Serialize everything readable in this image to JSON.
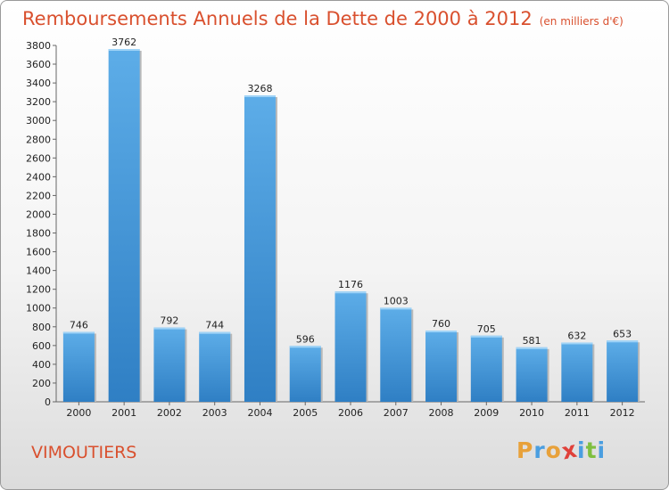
{
  "header": {
    "title": "Remboursements Annuels de la Dette de 2000 à 2012",
    "subtitle": "(en milliers d'€)"
  },
  "footer": {
    "city": "VIMOUTIERS",
    "logo_text": "Proxiti"
  },
  "colors": {
    "bar_light": "#5dade8",
    "bar_dark": "#2f7fc4",
    "title": "#d9502e",
    "logo": [
      "#e8a13a",
      "#4a9ee0",
      "#e8a13a",
      "#e0413a",
      "#4a9ee0",
      "#7fbf3f",
      "#4a9ee0"
    ]
  },
  "chart_data": {
    "type": "bar",
    "title": "Remboursements Annuels de la Dette de 2000 à 2012",
    "subtitle": "(en milliers d'€)",
    "xlabel": "",
    "ylabel": "",
    "categories": [
      "2000",
      "2001",
      "2002",
      "2003",
      "2004",
      "2005",
      "2006",
      "2007",
      "2008",
      "2009",
      "2010",
      "2011",
      "2012"
    ],
    "values": [
      746,
      3762,
      792,
      744,
      3268,
      596,
      1176,
      1003,
      760,
      705,
      581,
      632,
      653
    ],
    "ylim": [
      0,
      3800
    ],
    "yticks": [
      0,
      200,
      400,
      600,
      800,
      1000,
      1200,
      1400,
      1600,
      1800,
      2000,
      2200,
      2400,
      2600,
      2800,
      3000,
      3200,
      3400,
      3600,
      3800
    ],
    "grid": false,
    "legend": "none"
  }
}
